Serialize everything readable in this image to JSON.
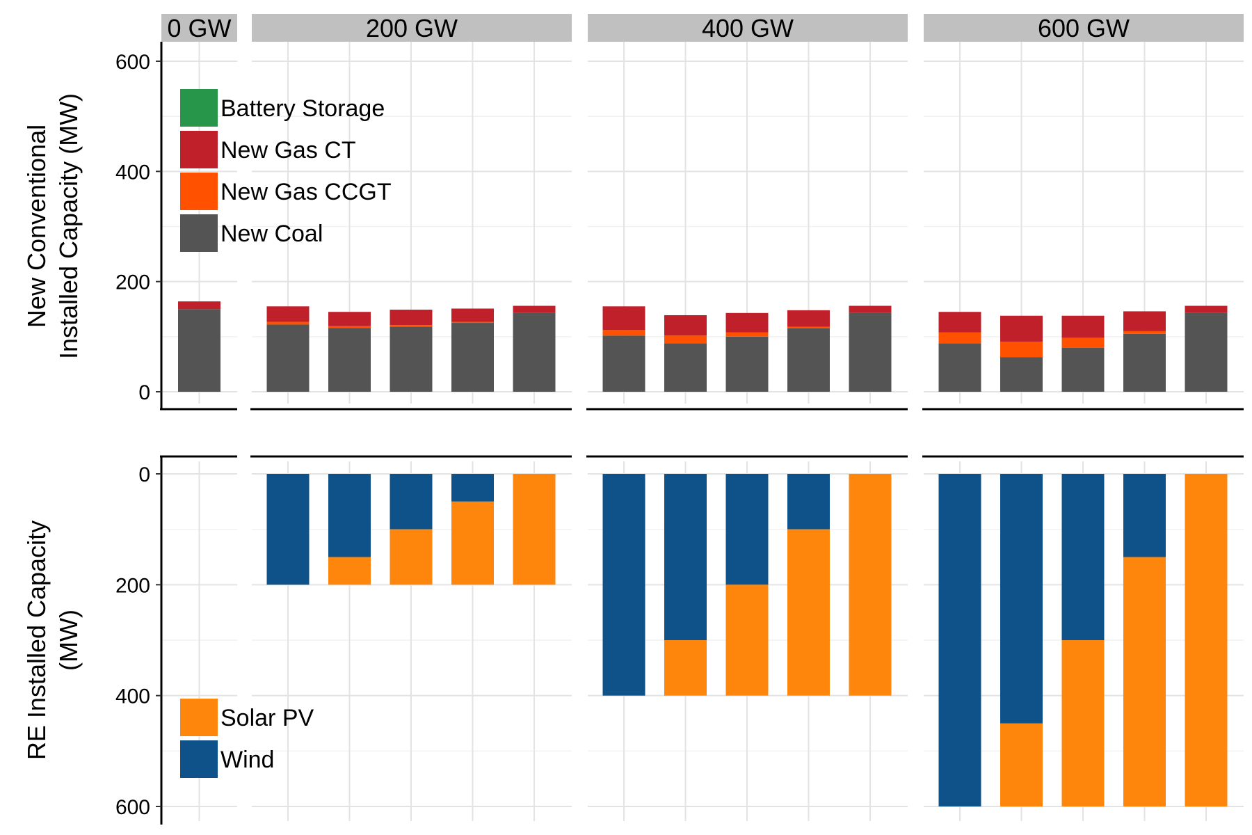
{
  "chart_data": [
    {
      "type": "bar",
      "stacked": true,
      "facets": [
        "0 GW",
        "200 GW",
        "400 GW",
        "600 GW"
      ],
      "ylabel_lines": [
        "New Conventional",
        "Installed Capacity (MW)"
      ],
      "ylim": [
        0,
        600
      ],
      "yticks": [
        0,
        200,
        400,
        600
      ],
      "grid": true,
      "legend_position": "top-left",
      "series": [
        {
          "name": "New Coal",
          "color": "#545454",
          "values": [
            [
              150
            ],
            [
              122,
              116,
              118,
              125,
              143
            ],
            [
              102,
              88,
              100,
              115,
              143
            ],
            [
              88,
              63,
              80,
              105,
              143
            ]
          ]
        },
        {
          "name": "New Gas CCGT",
          "color": "#ff5100",
          "values": [
            [
              0
            ],
            [
              5,
              3,
              3,
              2,
              0
            ],
            [
              10,
              14,
              8,
              3,
              0
            ],
            [
              20,
              28,
              18,
              5,
              0
            ]
          ]
        },
        {
          "name": "New Gas CT",
          "color": "#c0202a",
          "values": [
            [
              14
            ],
            [
              28,
              26,
              28,
              24,
              13
            ],
            [
              43,
              37,
              35,
              30,
              13
            ],
            [
              37,
              47,
              40,
              36,
              13
            ]
          ]
        },
        {
          "name": "Battery Storage",
          "color": "#27964a",
          "values": [
            [
              0
            ],
            [
              0,
              0,
              0,
              0,
              0
            ],
            [
              0,
              0,
              0,
              0,
              0
            ],
            [
              0,
              0,
              0,
              0,
              0
            ]
          ]
        }
      ]
    },
    {
      "type": "bar",
      "stacked": true,
      "reversed_y": true,
      "facets": [
        "0 GW",
        "200 GW",
        "400 GW",
        "600 GW"
      ],
      "ylabel_lines": [
        "RE Installed Capacity",
        "(MW)"
      ],
      "ylim": [
        0,
        600
      ],
      "yticks": [
        0,
        200,
        400,
        600
      ],
      "grid": true,
      "legend_position": "bottom-left",
      "series": [
        {
          "name": "Wind",
          "color": "#0e5289",
          "values": [
            [
              0
            ],
            [
              200,
              150,
              100,
              50,
              0
            ],
            [
              400,
              300,
              200,
              100,
              0
            ],
            [
              600,
              450,
              300,
              150,
              0
            ]
          ]
        },
        {
          "name": "Solar PV",
          "color": "#ff860d",
          "values": [
            [
              0
            ],
            [
              0,
              50,
              100,
              150,
              200
            ],
            [
              0,
              100,
              200,
              300,
              400
            ],
            [
              0,
              150,
              300,
              450,
              600
            ]
          ]
        }
      ]
    }
  ]
}
